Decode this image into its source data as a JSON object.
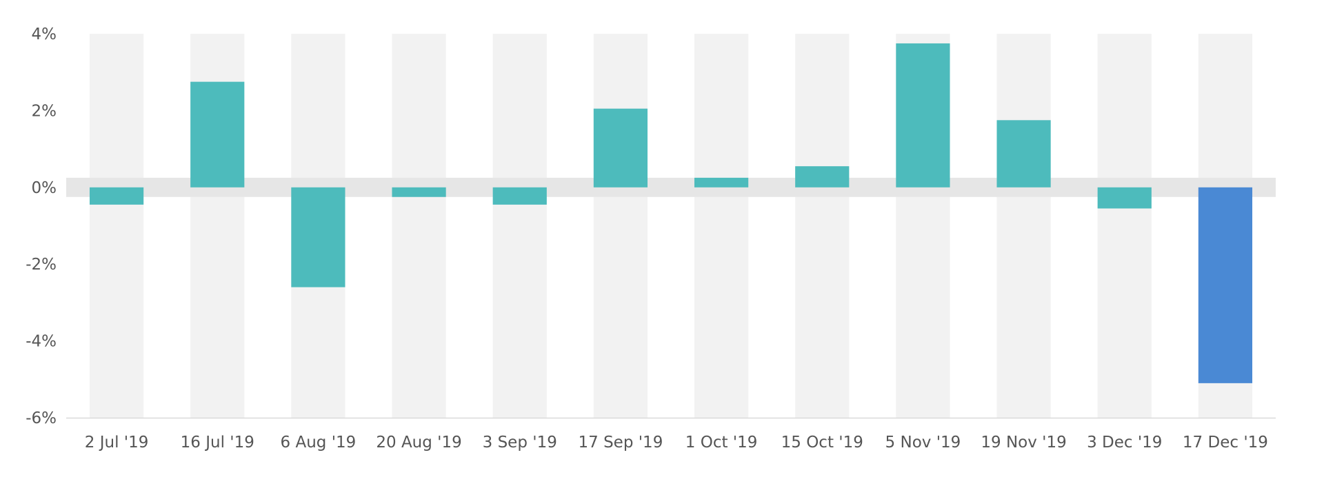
{
  "chart_data": {
    "type": "bar",
    "title": "",
    "xlabel": "",
    "ylabel": "",
    "categories": [
      "2 Jul '19",
      "16 Jul '19",
      "6 Aug '19",
      "20 Aug '19",
      "3 Sep '19",
      "17 Sep '19",
      "1 Oct '19",
      "15 Oct '19",
      "5 Nov '19",
      "19 Nov '19",
      "3 Dec '19",
      "17 Dec '19"
    ],
    "values": [
      -0.45,
      2.75,
      -2.6,
      -0.25,
      -0.45,
      2.05,
      0.25,
      0.55,
      3.75,
      1.75,
      -0.55,
      -5.1
    ],
    "ylim": [
      -6,
      4
    ],
    "yticks": [
      4,
      2,
      0,
      -2,
      -4,
      -6
    ],
    "ytick_labels": [
      "4%",
      "2%",
      "0%",
      "-2%",
      "-4%",
      "-6%"
    ],
    "zero_band": [
      -0.25,
      0.25
    ],
    "colors": {
      "bar": "#4dbbbc",
      "highlight_bar": "#4a89d4",
      "band": "#f2f2f2",
      "zero_band": "#e6e6e6",
      "axis": "#d9d9d9",
      "text": "#555555"
    },
    "highlight_index": 11,
    "grid": false,
    "legend": "none"
  }
}
